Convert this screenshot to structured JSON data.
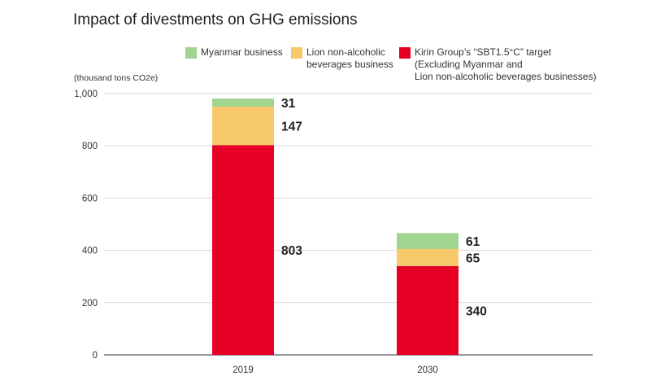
{
  "chart_data": {
    "type": "bar",
    "stacked": true,
    "title": "Impact of divestments on GHG emissions",
    "ylabel": "(thousand tons CO2e)",
    "xlabel": "",
    "ylim": [
      0,
      1000
    ],
    "yticks": [
      "0",
      "200",
      "400",
      "600",
      "800",
      "1,000"
    ],
    "ytick_values": [
      0,
      200,
      400,
      600,
      800,
      1000
    ],
    "categories": [
      "2019",
      "2030"
    ],
    "legend_position": "top",
    "series": [
      {
        "key": "kirin",
        "name": "Kirin Group’s “SBT1.5°C” target (Excluding Myanmar and Lion non-alcoholic beverages businesses)",
        "color": "#e60026",
        "values": [
          803,
          340
        ]
      },
      {
        "key": "lion",
        "name": "Lion non-alcoholic beverages business",
        "color": "#f8c96a",
        "values": [
          147,
          65
        ]
      },
      {
        "key": "myanmar",
        "name": "Myanmar business",
        "color": "#a1d490",
        "values": [
          31,
          61
        ]
      }
    ]
  },
  "legend": {
    "myanmar": {
      "lines": [
        "Myanmar business"
      ],
      "color": "#a1d490"
    },
    "lion": {
      "lines": [
        "Lion non-alcoholic",
        "beverages business"
      ],
      "color": "#f8c96a"
    },
    "kirin": {
      "lines": [
        "Kirin Group’s “SBT1.5°C” target",
        "(Excluding Myanmar and",
        "Lion non-alcoholic beverages businesses)"
      ],
      "color": "#e60026"
    }
  }
}
